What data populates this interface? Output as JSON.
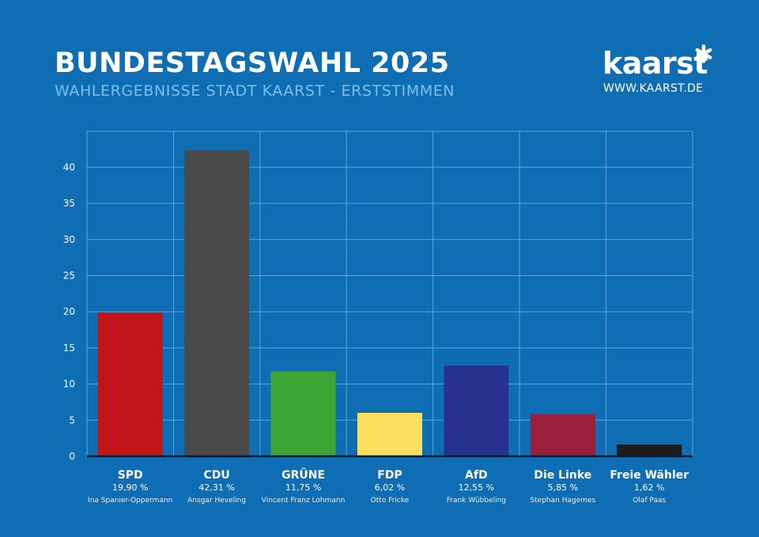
{
  "header": {
    "title": "BUNDESTAGSWAHL 2025",
    "subtitle": "WAHLERGEBNISSE STADT KAARST - ERSTSTIMMEN"
  },
  "brand": {
    "logo_text": "kaarst",
    "logo_icon": "asterisk-icon",
    "url": "WWW.KAARST.DE"
  },
  "colors": {
    "background": "#0f6db4",
    "grid": "#5aa5dc",
    "axis": "#0b1a2e"
  },
  "chart_data": {
    "type": "bar",
    "categories": [
      "SPD",
      "CDU",
      "GRÜNE",
      "FDP",
      "AfD",
      "Die Linke",
      "Freie Wähler"
    ],
    "values": [
      19.9,
      42.31,
      11.75,
      6.02,
      12.55,
      5.85,
      1.62
    ],
    "value_labels": [
      "19,90 %",
      "42,31 %",
      "11,75 %",
      "6,02 %",
      "12,55 %",
      "5,85 %",
      "1,62 %"
    ],
    "candidates": [
      "Ina Spanier-Oppermann",
      "Ansgar Heveling",
      "Vincent Franz Lohmann",
      "Otto Fricke",
      "Frank Wübbeling",
      "Stephan Hagemes",
      "Olaf Paas"
    ],
    "bar_colors": [
      "#c2151b",
      "#4a4a4a",
      "#3ea535",
      "#f9e05e",
      "#27318e",
      "#9b1e3e",
      "#1c1c1c"
    ],
    "yticks": [
      0,
      5,
      10,
      15,
      20,
      25,
      30,
      35,
      40
    ],
    "ylim": [
      0,
      45
    ],
    "grid": true,
    "legend": "none"
  }
}
